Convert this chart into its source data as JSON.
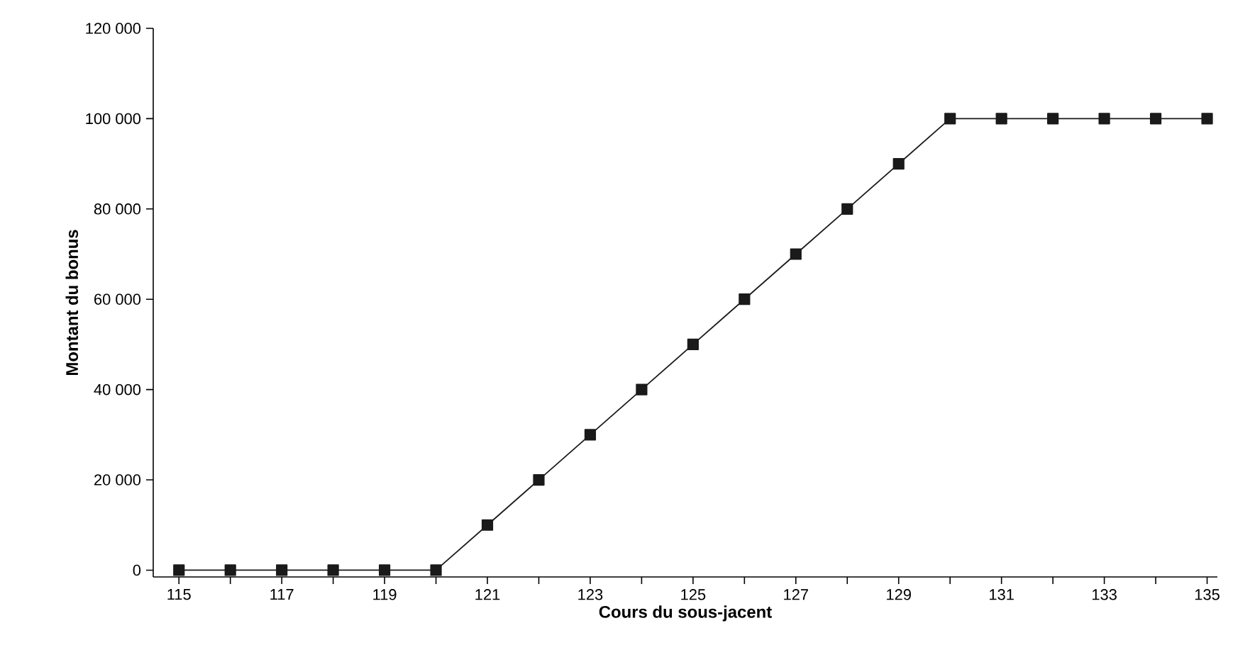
{
  "chart_data": {
    "type": "line",
    "xlabel": "Cours du sous-jacent",
    "ylabel": "Montant du bonus",
    "x": [
      115,
      116,
      117,
      118,
      119,
      120,
      121,
      122,
      123,
      124,
      125,
      126,
      127,
      128,
      129,
      130,
      131,
      132,
      133,
      134,
      135
    ],
    "series": [
      {
        "color": "#1a1a1a",
        "values": [
          0,
          0,
          0,
          0,
          0,
          0,
          10000,
          20000,
          30000,
          40000,
          50000,
          60000,
          70000,
          80000,
          90000,
          100000,
          100000,
          100000,
          100000,
          100000,
          100000
        ]
      }
    ],
    "xlim": [
      114.5,
      135.2
    ],
    "ylim": [
      -1500,
      120000
    ],
    "xticks": [
      115,
      {
        "value": 116,
        "label": null
      },
      117,
      {
        "value": 118,
        "label": null
      },
      119,
      {
        "value": 120,
        "label": null
      },
      121,
      {
        "value": 122,
        "label": null
      },
      123,
      {
        "value": 124,
        "label": null
      },
      125,
      {
        "value": 126,
        "label": null
      },
      127,
      {
        "value": 128,
        "label": null
      },
      129,
      {
        "value": 130,
        "label": null
      },
      131,
      {
        "value": 132,
        "label": null
      },
      133,
      {
        "value": 134,
        "label": null
      },
      135
    ],
    "yticks": [
      {
        "value": 0,
        "label": "0"
      },
      {
        "value": 20000,
        "label": "20 000"
      },
      {
        "value": 40000,
        "label": "40 000"
      },
      {
        "value": 60000,
        "label": "60 000"
      },
      {
        "value": 80000,
        "label": "80 000"
      },
      {
        "value": 100000,
        "label": "100 000"
      },
      {
        "value": 120000,
        "label": "120 000"
      }
    ],
    "grid": false,
    "marker": "square",
    "line_style": "solid"
  }
}
